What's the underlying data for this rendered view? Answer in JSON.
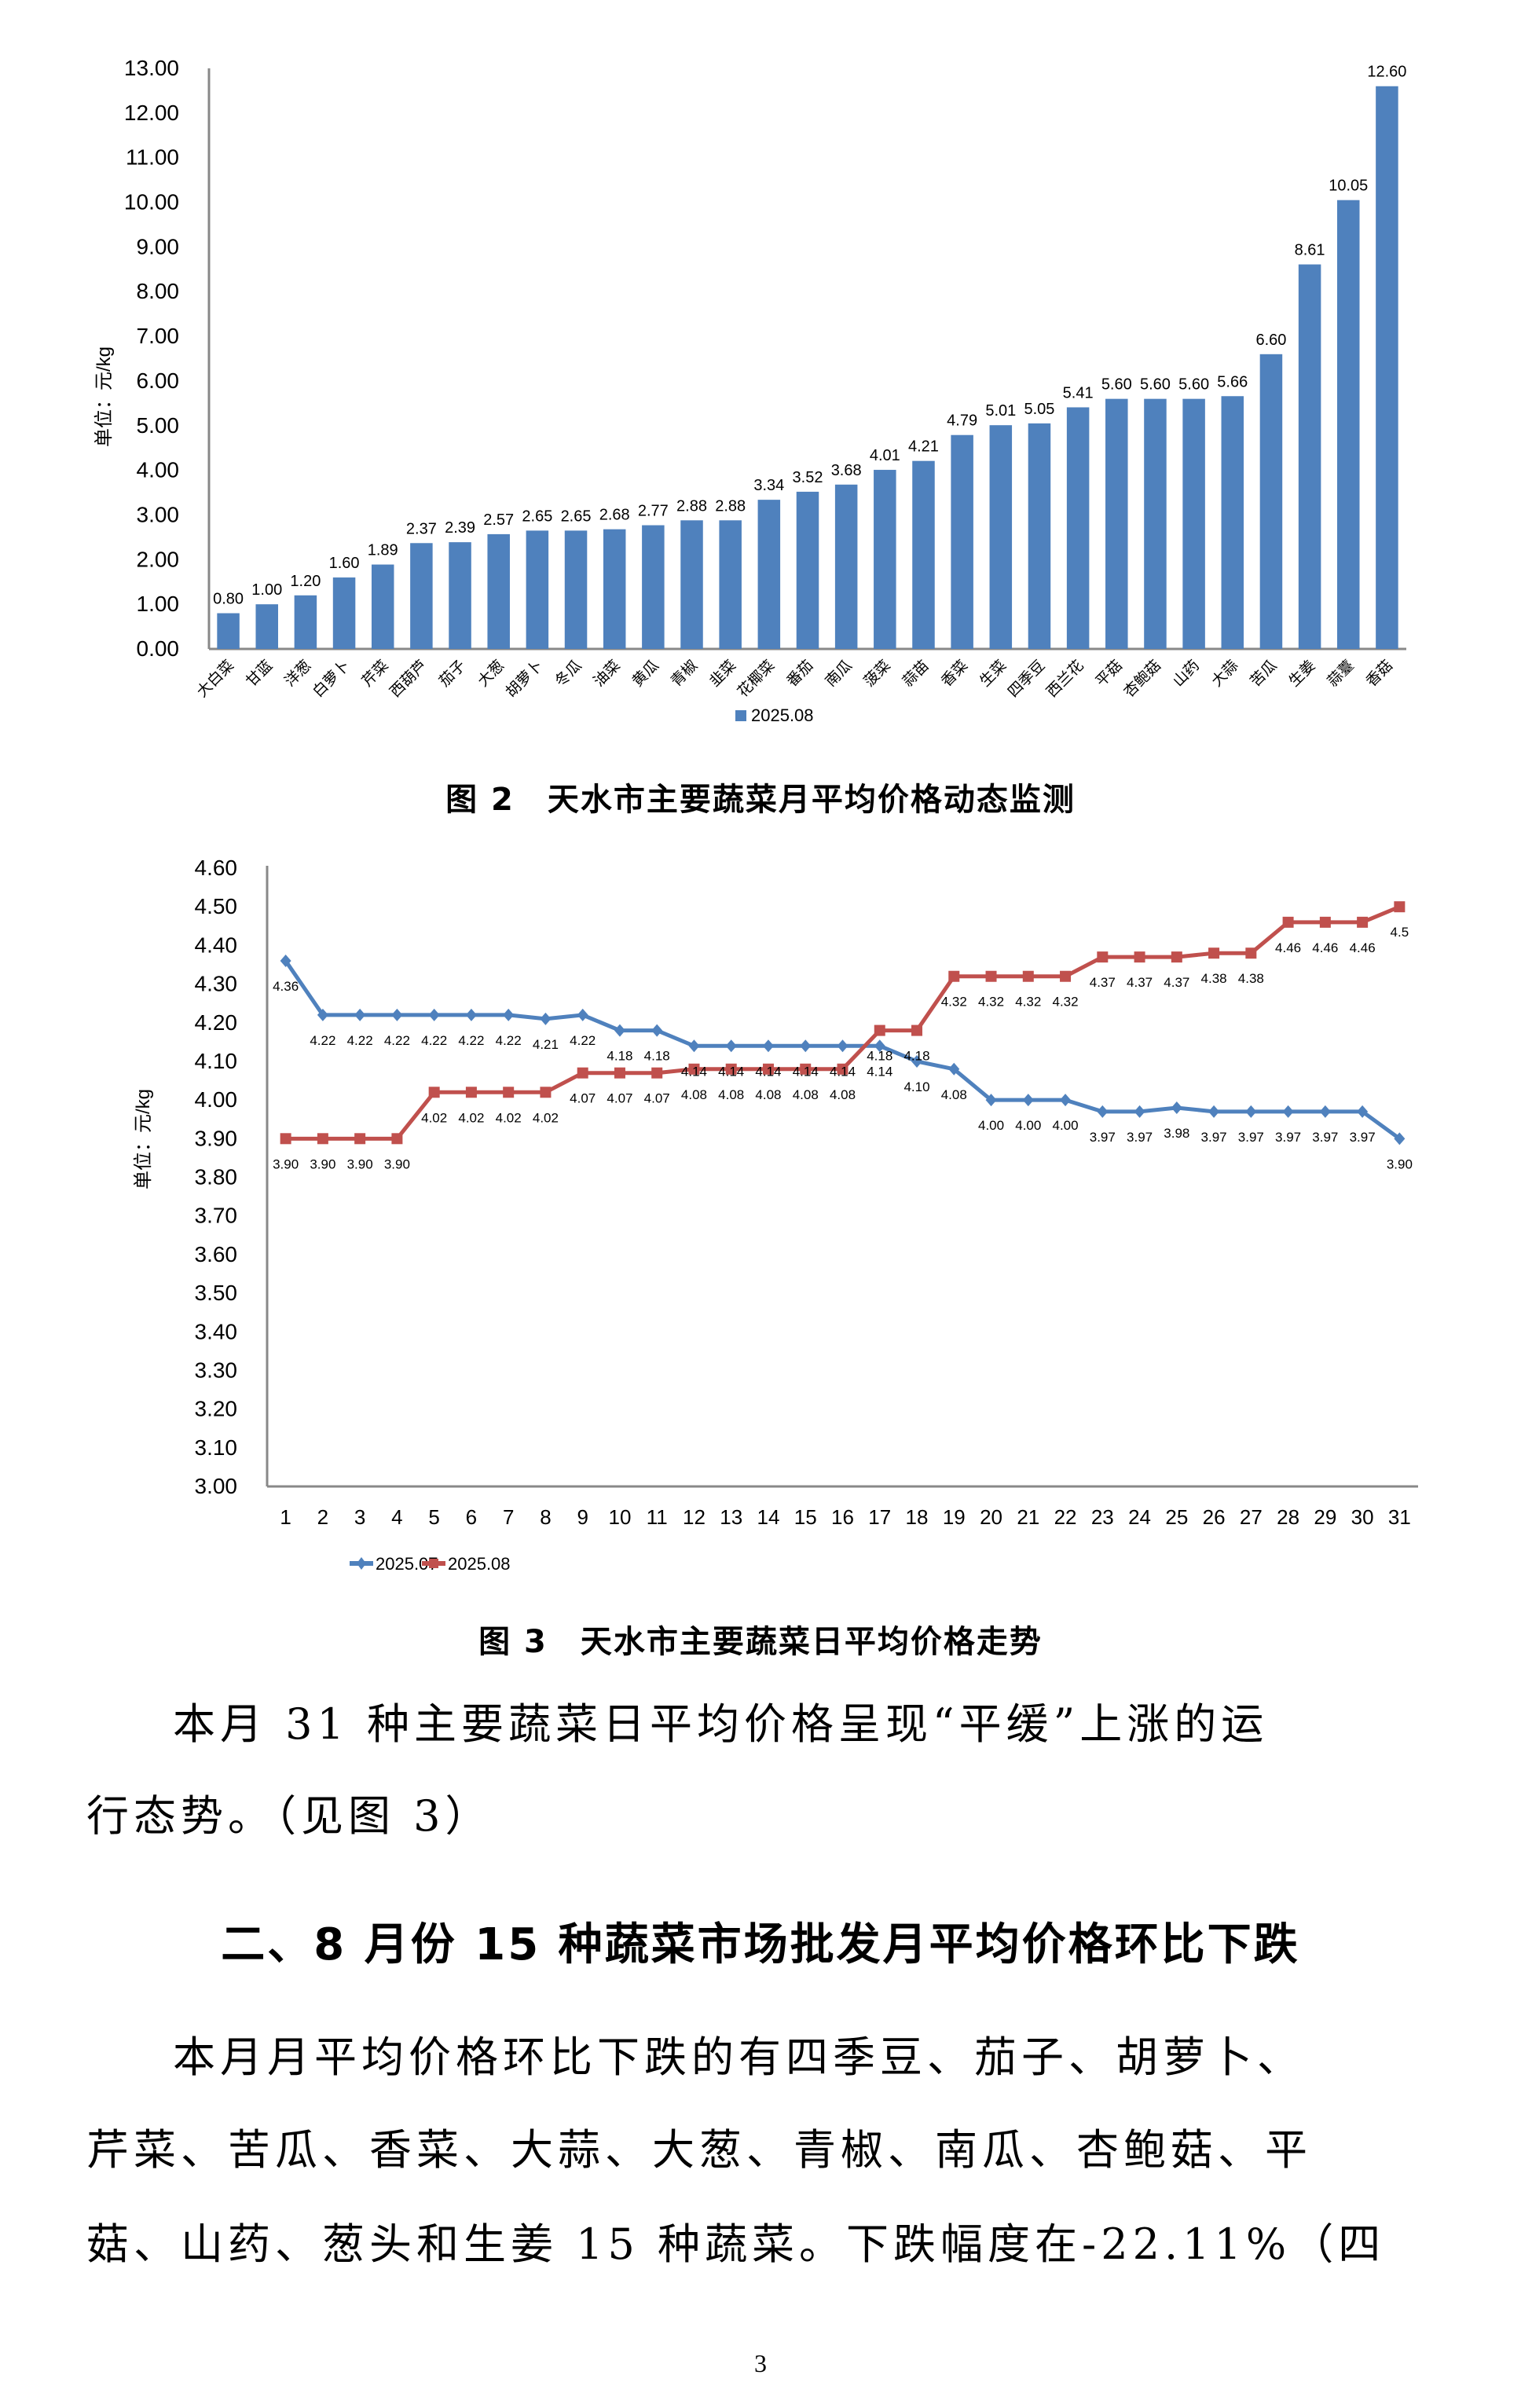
{
  "chart_data": [
    {
      "type": "bar",
      "title": "图 2　天水市主要蔬菜月平均价格动态监测",
      "xlabel": "",
      "ylabel": "单位：元/kg",
      "ylim": [
        0,
        13
      ],
      "yticks": [
        "0.00",
        "1.00",
        "2.00",
        "3.00",
        "4.00",
        "5.00",
        "6.00",
        "7.00",
        "8.00",
        "9.00",
        "10.00",
        "11.00",
        "12.00",
        "13.00"
      ],
      "grid": false,
      "legend_position": "bottom",
      "color": "#4F81BD",
      "categories": [
        "大白菜",
        "甘蓝",
        "洋葱",
        "白萝卜",
        "芹菜",
        "西葫芦",
        "茄子",
        "大葱",
        "胡萝卜",
        "冬瓜",
        "油菜",
        "黄瓜",
        "青椒",
        "韭菜",
        "花椰菜",
        "番茄",
        "南瓜",
        "菠菜",
        "蒜苗",
        "香菜",
        "生菜",
        "四季豆",
        "西兰花",
        "平菇",
        "杏鲍菇",
        "山药",
        "大蒜",
        "苦瓜",
        "生姜",
        "蒜薹",
        "香菇"
      ],
      "series": [
        {
          "name": "2025.08",
          "values": [
            0.8,
            1.0,
            1.2,
            1.6,
            1.89,
            2.37,
            2.39,
            2.57,
            2.65,
            2.65,
            2.68,
            2.77,
            2.88,
            2.88,
            3.34,
            3.52,
            3.68,
            4.01,
            4.21,
            4.79,
            5.01,
            5.05,
            5.41,
            5.6,
            5.6,
            5.6,
            5.66,
            6.6,
            8.61,
            10.05,
            12.6
          ],
          "labels": [
            "0.80",
            "1.00",
            "1.20",
            "1.60",
            "1.89",
            "2.37",
            "2.39",
            "2.57",
            "2.65",
            "2.65",
            "2.68",
            "2.77",
            "2.88",
            "2.88",
            "3.34",
            "3.52",
            "3.68",
            "4.01",
            "4.21",
            "4.79",
            "5.01",
            "5.05",
            "5.41",
            "5.60",
            "5.60",
            "5.60",
            "5.66",
            "6.60",
            "8.61",
            "10.05",
            "12.60"
          ]
        }
      ]
    },
    {
      "type": "line",
      "title": "图 3　天水市主要蔬菜日平均价格走势",
      "xlabel": "",
      "ylabel": "单位：元/kg",
      "ylim": [
        3.0,
        4.6
      ],
      "yticks": [
        "3.00",
        "3.10",
        "3.20",
        "3.30",
        "3.40",
        "3.50",
        "3.60",
        "3.70",
        "3.80",
        "3.90",
        "4.00",
        "4.10",
        "4.20",
        "4.30",
        "4.40",
        "4.50",
        "4.60"
      ],
      "grid": false,
      "legend_position": "bottom",
      "x": [
        1,
        2,
        3,
        4,
        5,
        6,
        7,
        8,
        9,
        10,
        11,
        12,
        13,
        14,
        15,
        16,
        17,
        18,
        19,
        20,
        21,
        22,
        23,
        24,
        25,
        26,
        27,
        28,
        29,
        30,
        31
      ],
      "series": [
        {
          "name": "2025.07",
          "color": "#4F81BD",
          "marker": "diamond",
          "values": [
            4.36,
            4.22,
            4.22,
            4.22,
            4.22,
            4.22,
            4.22,
            4.21,
            4.22,
            4.18,
            4.18,
            4.14,
            4.14,
            4.14,
            4.14,
            4.14,
            4.14,
            4.1,
            4.08,
            4.0,
            4.0,
            4.0,
            3.97,
            3.97,
            3.98,
            3.97,
            3.97,
            3.97,
            3.97,
            3.97,
            3.9
          ],
          "labels": [
            "4.36",
            "4.22",
            "4.22",
            "4.22",
            "4.22",
            "4.22",
            "4.22",
            "4.21",
            "4.22",
            "4.18",
            "4.18",
            "4.14",
            "4.14",
            "4.14",
            "4.14",
            "4.14",
            "4.14",
            "4.10",
            "4.08",
            "4.00",
            "4.00",
            "4.00",
            "3.97",
            "3.97",
            "3.98",
            "3.97",
            "3.97",
            "3.97",
            "3.97",
            "3.97",
            "3.90"
          ]
        },
        {
          "name": "2025.08",
          "color": "#C0504D",
          "marker": "square",
          "values": [
            3.9,
            3.9,
            3.9,
            3.9,
            4.02,
            4.02,
            4.02,
            4.02,
            4.07,
            4.07,
            4.07,
            4.08,
            4.08,
            4.08,
            4.08,
            4.08,
            4.18,
            4.18,
            4.32,
            4.32,
            4.32,
            4.32,
            4.37,
            4.37,
            4.37,
            4.38,
            4.38,
            4.46,
            4.46,
            4.46,
            4.5
          ],
          "labels": [
            "3.90",
            "3.90",
            "3.90",
            "3.90",
            "4.02",
            "4.02",
            "4.02",
            "4.02",
            "4.07",
            "4.07",
            "4.07",
            "4.08",
            "4.08",
            "4.08",
            "4.08",
            "4.08",
            "4.18",
            "4.18",
            "4.32",
            "4.32",
            "4.32",
            "4.32",
            "4.37",
            "4.37",
            "4.37",
            "4.38",
            "4.38",
            "4.46",
            "4.46",
            "4.46",
            "4.5"
          ]
        }
      ]
    }
  ],
  "doc": {
    "fig2_caption": "图 2　天水市主要蔬菜月平均价格动态监测",
    "fig3_caption": "图 3　天水市主要蔬菜日平均价格走势",
    "para1_line1": "本月 31 种主要蔬菜日平均价格呈现“平缓”上涨的运",
    "para1_line2": "行态势。（见图 3）",
    "section_heading": "二、8 月份 15 种蔬菜市场批发月平均价格环比下跌",
    "para2_line1": "本月月平均价格环比下跌的有四季豆、茄子、胡萝卜、",
    "para2_line2": "芹菜、苦瓜、香菜、大蒜、大葱、青椒、南瓜、杏鲍菇、平",
    "para2_line3": "菇、山药、葱头和生姜 15 种蔬菜。下跌幅度在-22.11%（四",
    "page_number": "3"
  }
}
